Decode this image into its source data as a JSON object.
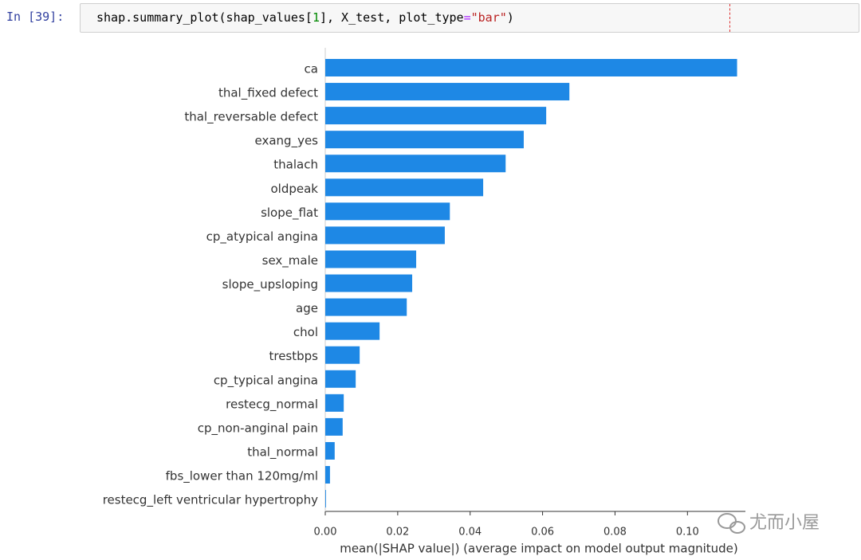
{
  "cell": {
    "prompt": "In [39]:",
    "code": [
      "shap.summary_plot(shap_values[",
      "1",
      "], X_test, plot_type",
      "=",
      "\"bar\"",
      ")"
    ]
  },
  "chart_data": {
    "type": "barh",
    "categories": [
      "ca",
      "thal_fixed defect",
      "thal_reversable defect",
      "exang_yes",
      "thalach",
      "oldpeak",
      "slope_flat",
      "cp_atypical angina",
      "sex_male",
      "slope_upsloping",
      "age",
      "chol",
      "trestbps",
      "cp_typical angina",
      "restecg_normal",
      "cp_non-anginal pain",
      "thal_normal",
      "fbs_lower than 120mg/ml",
      "restecg_left ventricular hypertrophy"
    ],
    "values": [
      0.1137,
      0.0674,
      0.061,
      0.0548,
      0.0498,
      0.0436,
      0.0344,
      0.033,
      0.0251,
      0.024,
      0.0225,
      0.015,
      0.0095,
      0.0084,
      0.0051,
      0.0048,
      0.0026,
      0.0013,
      0.0002
    ],
    "color": "#1e88e5",
    "xlim": [
      0,
      0.116
    ],
    "xticks": [
      {
        "value": 0,
        "label": "0.00"
      },
      0.02,
      0.04,
      0.06,
      0.08,
      {
        "value": 0.1,
        "label": "0.10"
      }
    ],
    "x_label": "mean(|SHAP value|) (average impact on model output magnitude)"
  },
  "watermark": "尤而小屋"
}
